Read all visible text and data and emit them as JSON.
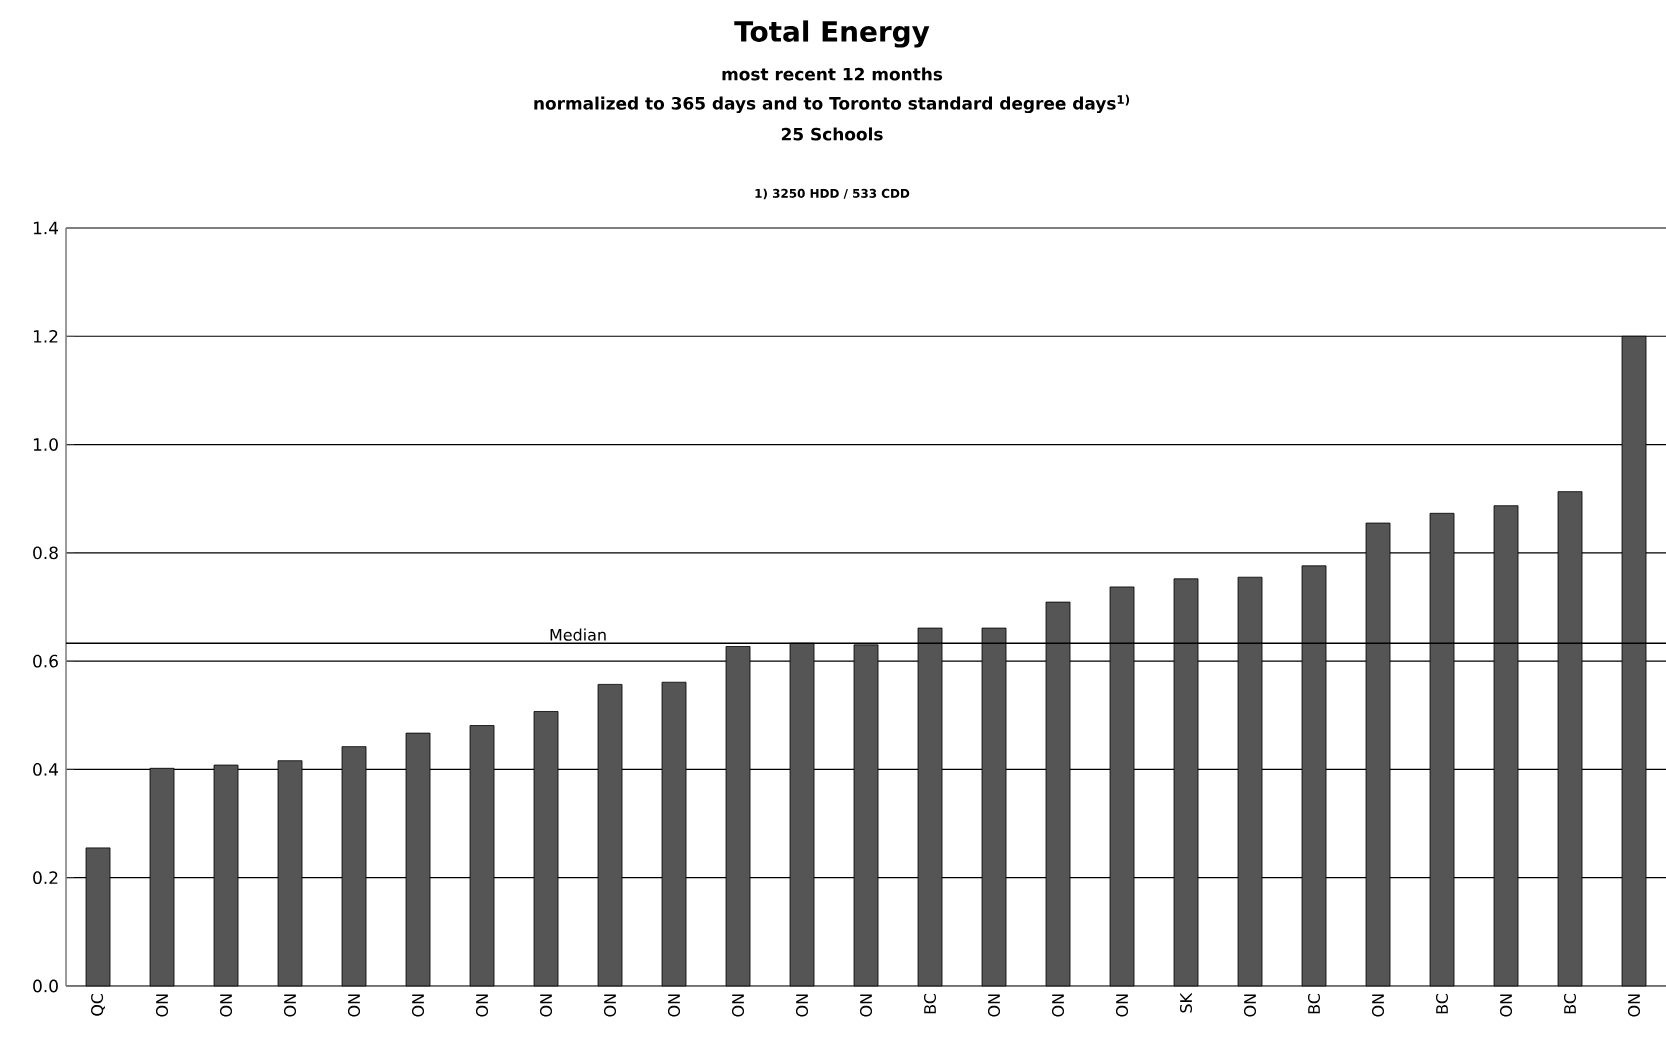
{
  "chart_data": {
    "type": "bar",
    "title": "Total Energy",
    "subtitle": "most recent 12 months",
    "annotations": [
      "normalized to 365 days and to Toronto standard degree days$^{1)}$",
      "25 Schools",
      "1) 3250 HDD / 533 CDD"
    ],
    "categories": [
      "QC",
      "ON",
      "ON",
      "ON",
      "ON",
      "ON",
      "ON",
      "ON",
      "ON",
      "ON",
      "ON",
      "ON",
      "ON",
      "BC",
      "ON",
      "ON",
      "ON",
      "SK",
      "ON",
      "BC",
      "ON",
      "BC",
      "ON",
      "BC",
      "ON"
    ],
    "values": [
      0.255,
      0.402,
      0.408,
      0.416,
      0.442,
      0.467,
      0.481,
      0.507,
      0.557,
      0.561,
      0.627,
      0.633,
      0.63,
      0.661,
      0.661,
      0.709,
      0.737,
      0.752,
      0.755,
      0.776,
      0.855,
      0.873,
      0.887,
      0.913,
      1.2
    ],
    "color": "#555555",
    "ylim": [
      0,
      1.4
    ],
    "yticks": [
      {
        "value": 0,
        "label": "0.0"
      },
      {
        "value": 0.2,
        "label": "0.2"
      },
      {
        "value": 0.4,
        "label": "0.4"
      },
      {
        "value": 0.6,
        "label": "0.6"
      },
      {
        "value": 0.8,
        "label": "0.8"
      },
      {
        "value": 1.0,
        "label": "1.0"
      },
      {
        "value": 1.2,
        "label": "1.2"
      },
      {
        "value": 1.4,
        "label": "1.4"
      }
    ],
    "grid": "y",
    "ref_lines": [
      {
        "axis": "y",
        "value": 0.633,
        "label": "Median",
        "color": "#000000"
      }
    ]
  }
}
